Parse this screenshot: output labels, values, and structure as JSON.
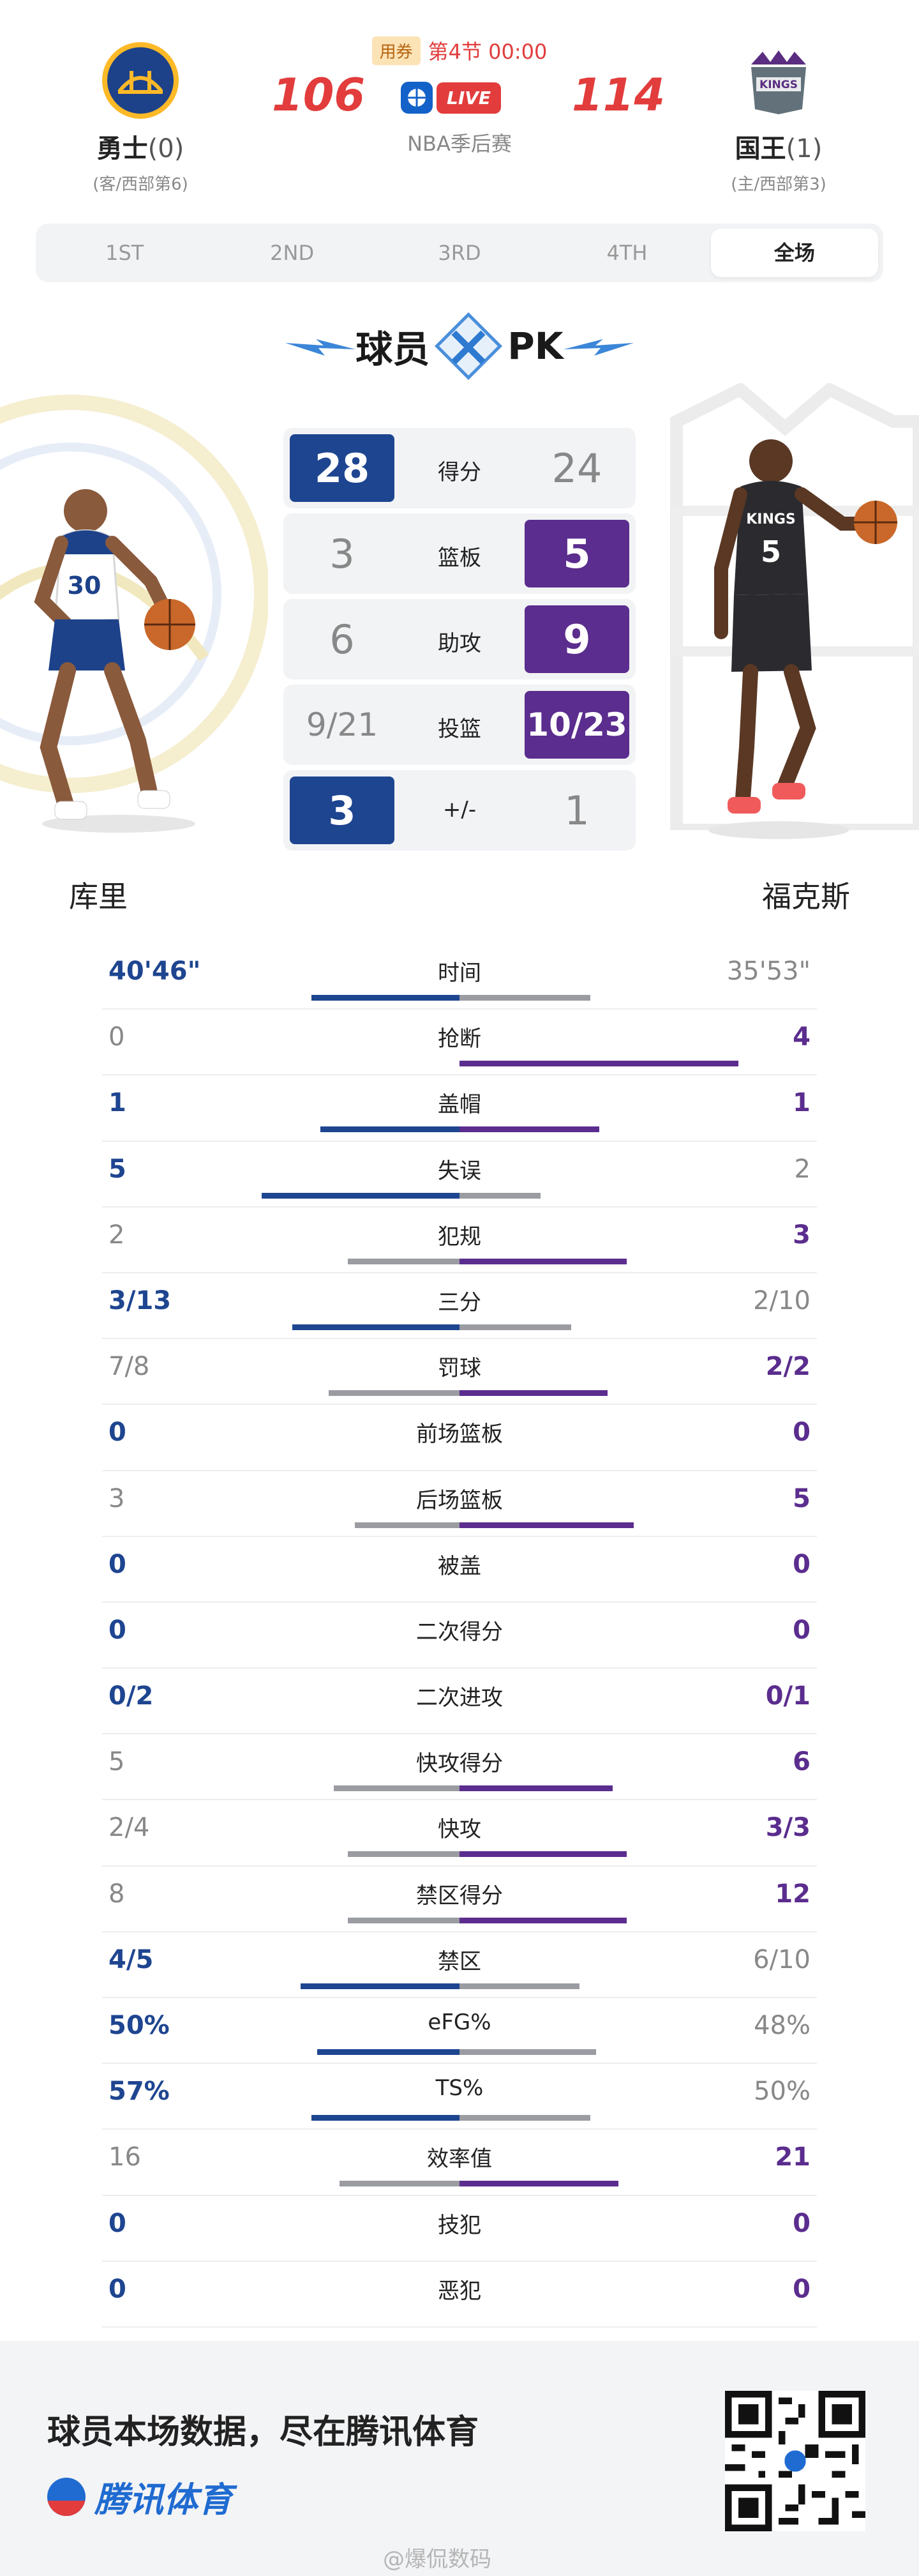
{
  "header": {
    "home": {
      "name": "勇士",
      "record": "(0)",
      "sub": "(客/西部第6)",
      "score": "106"
    },
    "away": {
      "name": "国王",
      "record": "(1)",
      "sub": "(主/西部第3)",
      "score": "114"
    },
    "coupon": "用券",
    "period": "第4节 00:00",
    "live": "LIVE",
    "league": "NBA季后赛"
  },
  "tabs": [
    "1ST",
    "2ND",
    "3RD",
    "4TH",
    "全场"
  ],
  "pk": {
    "left": "球员",
    "right": "PK"
  },
  "comparison": [
    {
      "label": "得分",
      "left": "28",
      "right": "24",
      "winner": "left"
    },
    {
      "label": "篮板",
      "left": "3",
      "right": "5",
      "winner": "right"
    },
    {
      "label": "助攻",
      "left": "6",
      "right": "9",
      "winner": "right"
    },
    {
      "label": "投篮",
      "left": "9/21",
      "right": "10/23",
      "winner": "right"
    },
    {
      "label": "+/-",
      "left": "3",
      "right": "1",
      "winner": "left"
    }
  ],
  "players": {
    "left": "库里",
    "right": "福克斯"
  },
  "stats": [
    {
      "label": "时间",
      "left": "40'46\"",
      "right": "35'53\"",
      "winner": "left",
      "left_share": 0.53,
      "right_share": 0.47
    },
    {
      "label": "抢断",
      "left": "0",
      "right": "4",
      "winner": "right",
      "left_share": 0.0,
      "right_share": 1.0
    },
    {
      "label": "盖帽",
      "left": "1",
      "right": "1",
      "winner": "tie",
      "left_share": 0.5,
      "right_share": 0.5
    },
    {
      "label": "失误",
      "left": "5",
      "right": "2",
      "winner": "left",
      "left_share": 0.71,
      "right_share": 0.29
    },
    {
      "label": "犯规",
      "left": "2",
      "right": "3",
      "winner": "right",
      "left_share": 0.4,
      "right_share": 0.6
    },
    {
      "label": "三分",
      "left": "3/13",
      "right": "2/10",
      "winner": "left",
      "left_share": 0.6,
      "right_share": 0.4
    },
    {
      "label": "罚球",
      "left": "7/8",
      "right": "2/2",
      "winner": "right",
      "left_share": 0.47,
      "right_share": 0.53
    },
    {
      "label": "前场篮板",
      "left": "0",
      "right": "0",
      "winner": "tie",
      "left_share": 0,
      "right_share": 0
    },
    {
      "label": "后场篮板",
      "left": "3",
      "right": "5",
      "winner": "right",
      "left_share": 0.375,
      "right_share": 0.625
    },
    {
      "label": "被盖",
      "left": "0",
      "right": "0",
      "winner": "tie",
      "left_share": 0,
      "right_share": 0
    },
    {
      "label": "二次得分",
      "left": "0",
      "right": "0",
      "winner": "tie",
      "left_share": 0,
      "right_share": 0
    },
    {
      "label": "二次进攻",
      "left": "0/2",
      "right": "0/1",
      "winner": "tie",
      "left_share": 0,
      "right_share": 0
    },
    {
      "label": "快攻得分",
      "left": "5",
      "right": "6",
      "winner": "right",
      "left_share": 0.45,
      "right_share": 0.55
    },
    {
      "label": "快攻",
      "left": "2/4",
      "right": "3/3",
      "winner": "right",
      "left_share": 0.4,
      "right_share": 0.6
    },
    {
      "label": "禁区得分",
      "left": "8",
      "right": "12",
      "winner": "right",
      "left_share": 0.4,
      "right_share": 0.6
    },
    {
      "label": "禁区",
      "left": "4/5",
      "right": "6/10",
      "winner": "left",
      "left_share": 0.57,
      "right_share": 0.43
    },
    {
      "label": "eFG%",
      "left": "50%",
      "right": "48%",
      "winner": "left",
      "left_share": 0.51,
      "right_share": 0.49
    },
    {
      "label": "TS%",
      "left": "57%",
      "right": "50%",
      "winner": "left",
      "left_share": 0.53,
      "right_share": 0.47
    },
    {
      "label": "效率值",
      "left": "16",
      "right": "21",
      "winner": "right",
      "left_share": 0.43,
      "right_share": 0.57
    },
    {
      "label": "技犯",
      "left": "0",
      "right": "0",
      "winner": "tie",
      "left_share": 0,
      "right_share": 0
    },
    {
      "label": "恶犯",
      "left": "0",
      "right": "0",
      "winner": "tie",
      "left_share": 0,
      "right_share": 0
    }
  ],
  "footer": {
    "slogan": "球员本场数据，尽在腾讯体育",
    "brand": "腾讯体育",
    "watermark": "@爆侃数码"
  },
  "colors": {
    "home": "#1e4590",
    "away": "#5b2d8e",
    "neutral": "#9a9ca2",
    "accent": "#e23c3c"
  },
  "icons": {
    "home_logo": "warriors-logo",
    "away_logo": "kings-logo",
    "live": "live-ball-icon",
    "qr": "qr-code"
  }
}
